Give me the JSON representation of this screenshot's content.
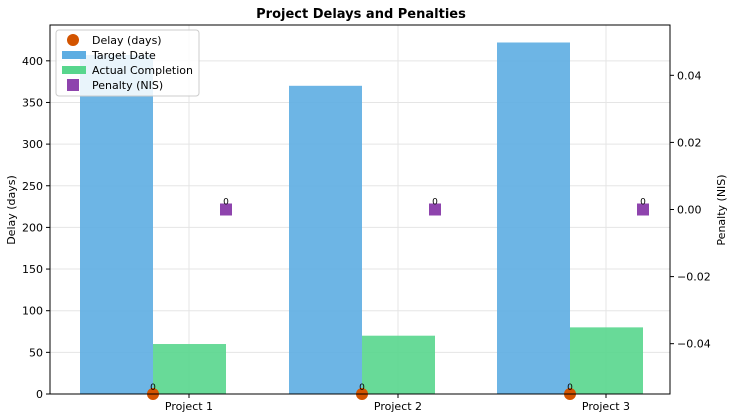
{
  "chart_data": {
    "type": "bar",
    "title": "Project Delays and Penalties",
    "categories": [
      "Project 1",
      "Project 2",
      "Project 3"
    ],
    "ylabel": "Delay (days)",
    "ylabel_right": "Penalty (NIS)",
    "ylim": [
      0,
      443
    ],
    "ylim_right": [
      -0.055,
      0.055
    ],
    "yticks": [
      0,
      50,
      100,
      150,
      200,
      250,
      300,
      350,
      400
    ],
    "yticks_right": [
      -0.04,
      -0.02,
      0.0,
      0.02,
      0.04
    ],
    "ytick_labels_right": [
      "−0.04",
      "−0.02",
      "0.00",
      "0.02",
      "0.04"
    ],
    "grid": true,
    "legend_position": "top-left",
    "series": [
      {
        "name": "Target Date",
        "kind": "bar",
        "axis": "left",
        "color": "#5dade2",
        "values": [
          407,
          370,
          422
        ]
      },
      {
        "name": "Actual Completion",
        "kind": "bar",
        "axis": "left",
        "color": "#58d68d",
        "values": [
          60,
          70,
          80
        ]
      },
      {
        "name": "Delay (days)",
        "kind": "marker",
        "marker": "circle",
        "axis": "left",
        "color": "#d35400",
        "values": [
          0,
          0,
          0
        ],
        "labels": [
          "0",
          "0",
          "0"
        ]
      },
      {
        "name": "Penalty (NIS)",
        "kind": "marker",
        "marker": "square",
        "axis": "right",
        "color": "#8e44ad",
        "values": [
          0,
          0,
          0
        ],
        "labels": [
          "0",
          "0",
          "0"
        ]
      }
    ],
    "legend_order": [
      "Delay (days)",
      "Target Date",
      "Actual Completion",
      "Penalty (NIS)"
    ]
  }
}
